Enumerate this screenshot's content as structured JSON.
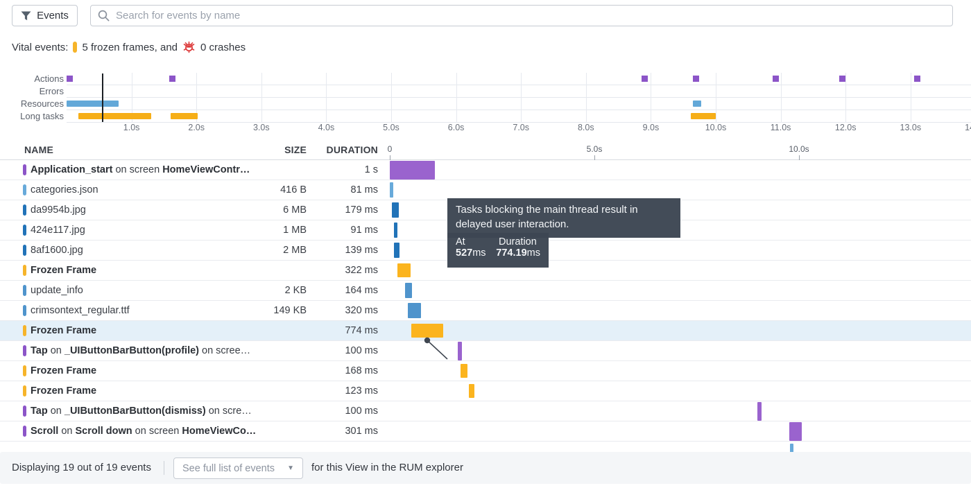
{
  "toolbar": {
    "events_button_label": "Events",
    "search_placeholder": "Search for events by name"
  },
  "vital": {
    "prefix": "Vital events:",
    "frozen_text": "5 frozen frames, and",
    "crash_text": "0 crashes"
  },
  "colors": {
    "action": "#8c55c8",
    "action_bar": "#9a63ce",
    "frozen": "#f6b42a",
    "frozen_bar": "#fbb41e",
    "resource_light": "#68aada",
    "resource_dark": "#2173b8",
    "resource_med": "#4f94cc",
    "crash_red": "#dd3c3c",
    "tooltip_bg": "#3d4653"
  },
  "timeline": {
    "row_labels": [
      "Actions",
      "Errors",
      "Resources",
      "Long tasks"
    ],
    "axis_tick_labels": [
      "1.0s",
      "2.0s",
      "3.0s",
      "4.0s",
      "5.0s",
      "6.0s",
      "7.0s",
      "8.0s",
      "9.0s",
      "10.0s",
      "11.0s",
      "12.0s",
      "13.0s",
      "14.0s"
    ],
    "actions_s": [
      0.05,
      1.63,
      8.9,
      9.7,
      10.92,
      11.95,
      13.1
    ],
    "resources_segments_s": [
      [
        0.0,
        0.8
      ],
      [
        9.65,
        9.78
      ]
    ],
    "long_tasks_segments_s": [
      [
        0.18,
        1.3
      ],
      [
        1.6,
        2.02
      ],
      [
        9.62,
        10.0
      ]
    ],
    "errors_segments_s": [],
    "playhead_s": 0.55
  },
  "table": {
    "columns": {
      "name": "NAME",
      "size": "SIZE",
      "duration": "DURATION"
    },
    "waterfall_axis": [
      {
        "label": "0",
        "s": 0
      },
      {
        "label": "5.0s",
        "s": 5
      },
      {
        "label": "10.0s",
        "s": 10
      }
    ],
    "rows": [
      {
        "segments": [
          {
            "t": "Application_start",
            "b": true
          },
          {
            "t": " on screen ",
            "b": false
          },
          {
            "t": "HomeViewContr…",
            "b": true
          }
        ],
        "size": "",
        "duration": "1 s",
        "kind": "action",
        "bar": {
          "start_s": 0.0,
          "dur_ms": 1100
        },
        "tall": true
      },
      {
        "segments": [
          {
            "t": "categories.json",
            "b": false
          }
        ],
        "size": "416 B",
        "duration": "81 ms",
        "kind": "resource_light",
        "bar": {
          "start_s": 0.0,
          "dur_ms": 81
        }
      },
      {
        "segments": [
          {
            "t": "da9954b.jpg",
            "b": false
          }
        ],
        "size": "6 MB",
        "duration": "179 ms",
        "kind": "resource_dark",
        "bar": {
          "start_s": 0.05,
          "dur_ms": 179
        }
      },
      {
        "segments": [
          {
            "t": "424e117.jpg",
            "b": false
          }
        ],
        "size": "1 MB",
        "duration": "91 ms",
        "kind": "resource_dark",
        "bar": {
          "start_s": 0.1,
          "dur_ms": 91
        }
      },
      {
        "segments": [
          {
            "t": "8af1600.jpg",
            "b": false
          }
        ],
        "size": "2 MB",
        "duration": "139 ms",
        "kind": "resource_dark",
        "bar": {
          "start_s": 0.1,
          "dur_ms": 139
        }
      },
      {
        "segments": [
          {
            "t": "Frozen Frame",
            "b": true
          }
        ],
        "size": "",
        "duration": "322 ms",
        "kind": "frozen",
        "bar": {
          "start_s": 0.19,
          "dur_ms": 322
        }
      },
      {
        "segments": [
          {
            "t": "update_info",
            "b": false
          }
        ],
        "size": "2 KB",
        "duration": "164 ms",
        "kind": "resource_med",
        "bar": {
          "start_s": 0.37,
          "dur_ms": 164
        }
      },
      {
        "segments": [
          {
            "t": "crimsontext_regular.ttf",
            "b": false
          }
        ],
        "size": "149 KB",
        "duration": "320 ms",
        "kind": "resource_med",
        "bar": {
          "start_s": 0.44,
          "dur_ms": 320
        }
      },
      {
        "segments": [
          {
            "t": "Frozen Frame",
            "b": true
          }
        ],
        "size": "",
        "duration": "774 ms",
        "kind": "frozen",
        "bar": {
          "start_s": 0.527,
          "dur_ms": 774
        },
        "selected": true
      },
      {
        "segments": [
          {
            "t": "Tap",
            "b": true
          },
          {
            "t": " on ",
            "b": false
          },
          {
            "t": "_UIButtonBarButton(profile)",
            "b": true
          },
          {
            "t": " on scree…",
            "b": false
          }
        ],
        "size": "",
        "duration": "100 ms",
        "kind": "action",
        "bar": {
          "start_s": 1.66,
          "dur_ms": 100
        },
        "tall": true
      },
      {
        "segments": [
          {
            "t": "Frozen Frame",
            "b": true
          }
        ],
        "size": "",
        "duration": "168 ms",
        "kind": "frozen",
        "bar": {
          "start_s": 1.73,
          "dur_ms": 168
        }
      },
      {
        "segments": [
          {
            "t": "Frozen Frame",
            "b": true
          }
        ],
        "size": "",
        "duration": "123 ms",
        "kind": "frozen",
        "bar": {
          "start_s": 1.94,
          "dur_ms": 123
        }
      },
      {
        "segments": [
          {
            "t": "Tap",
            "b": true
          },
          {
            "t": " on ",
            "b": false
          },
          {
            "t": "_UIButtonBarButton(dismiss)",
            "b": true
          },
          {
            "t": " on scre…",
            "b": false
          }
        ],
        "size": "",
        "duration": "100 ms",
        "kind": "action",
        "bar": {
          "start_s": 8.98,
          "dur_ms": 100
        },
        "tall": true
      },
      {
        "segments": [
          {
            "t": "Scroll",
            "b": true
          },
          {
            "t": " on ",
            "b": false
          },
          {
            "t": "Scroll down",
            "b": true
          },
          {
            "t": " on screen ",
            "b": false
          },
          {
            "t": "HomeViewCo…",
            "b": true
          }
        ],
        "size": "",
        "duration": "301 ms",
        "kind": "action",
        "bar": {
          "start_s": 9.76,
          "dur_ms": 301
        },
        "tall": true
      },
      {
        "segments": [],
        "size": "",
        "duration": "",
        "kind": "resource_light",
        "bar": {
          "start_s": 9.78,
          "dur_ms": 90
        },
        "partial": true
      }
    ]
  },
  "tooltip": {
    "message": "Tasks blocking the main thread result in delayed user interaction.",
    "at_label": "At",
    "at_value": "527",
    "at_unit": "ms",
    "duration_label": "Duration",
    "duration_value": "774.19",
    "duration_unit": "ms"
  },
  "footer": {
    "displaying_text": "Displaying 19 out of 19 events",
    "select_label": "See full list of events",
    "suffix_text": "for this View in the RUM explorer"
  }
}
